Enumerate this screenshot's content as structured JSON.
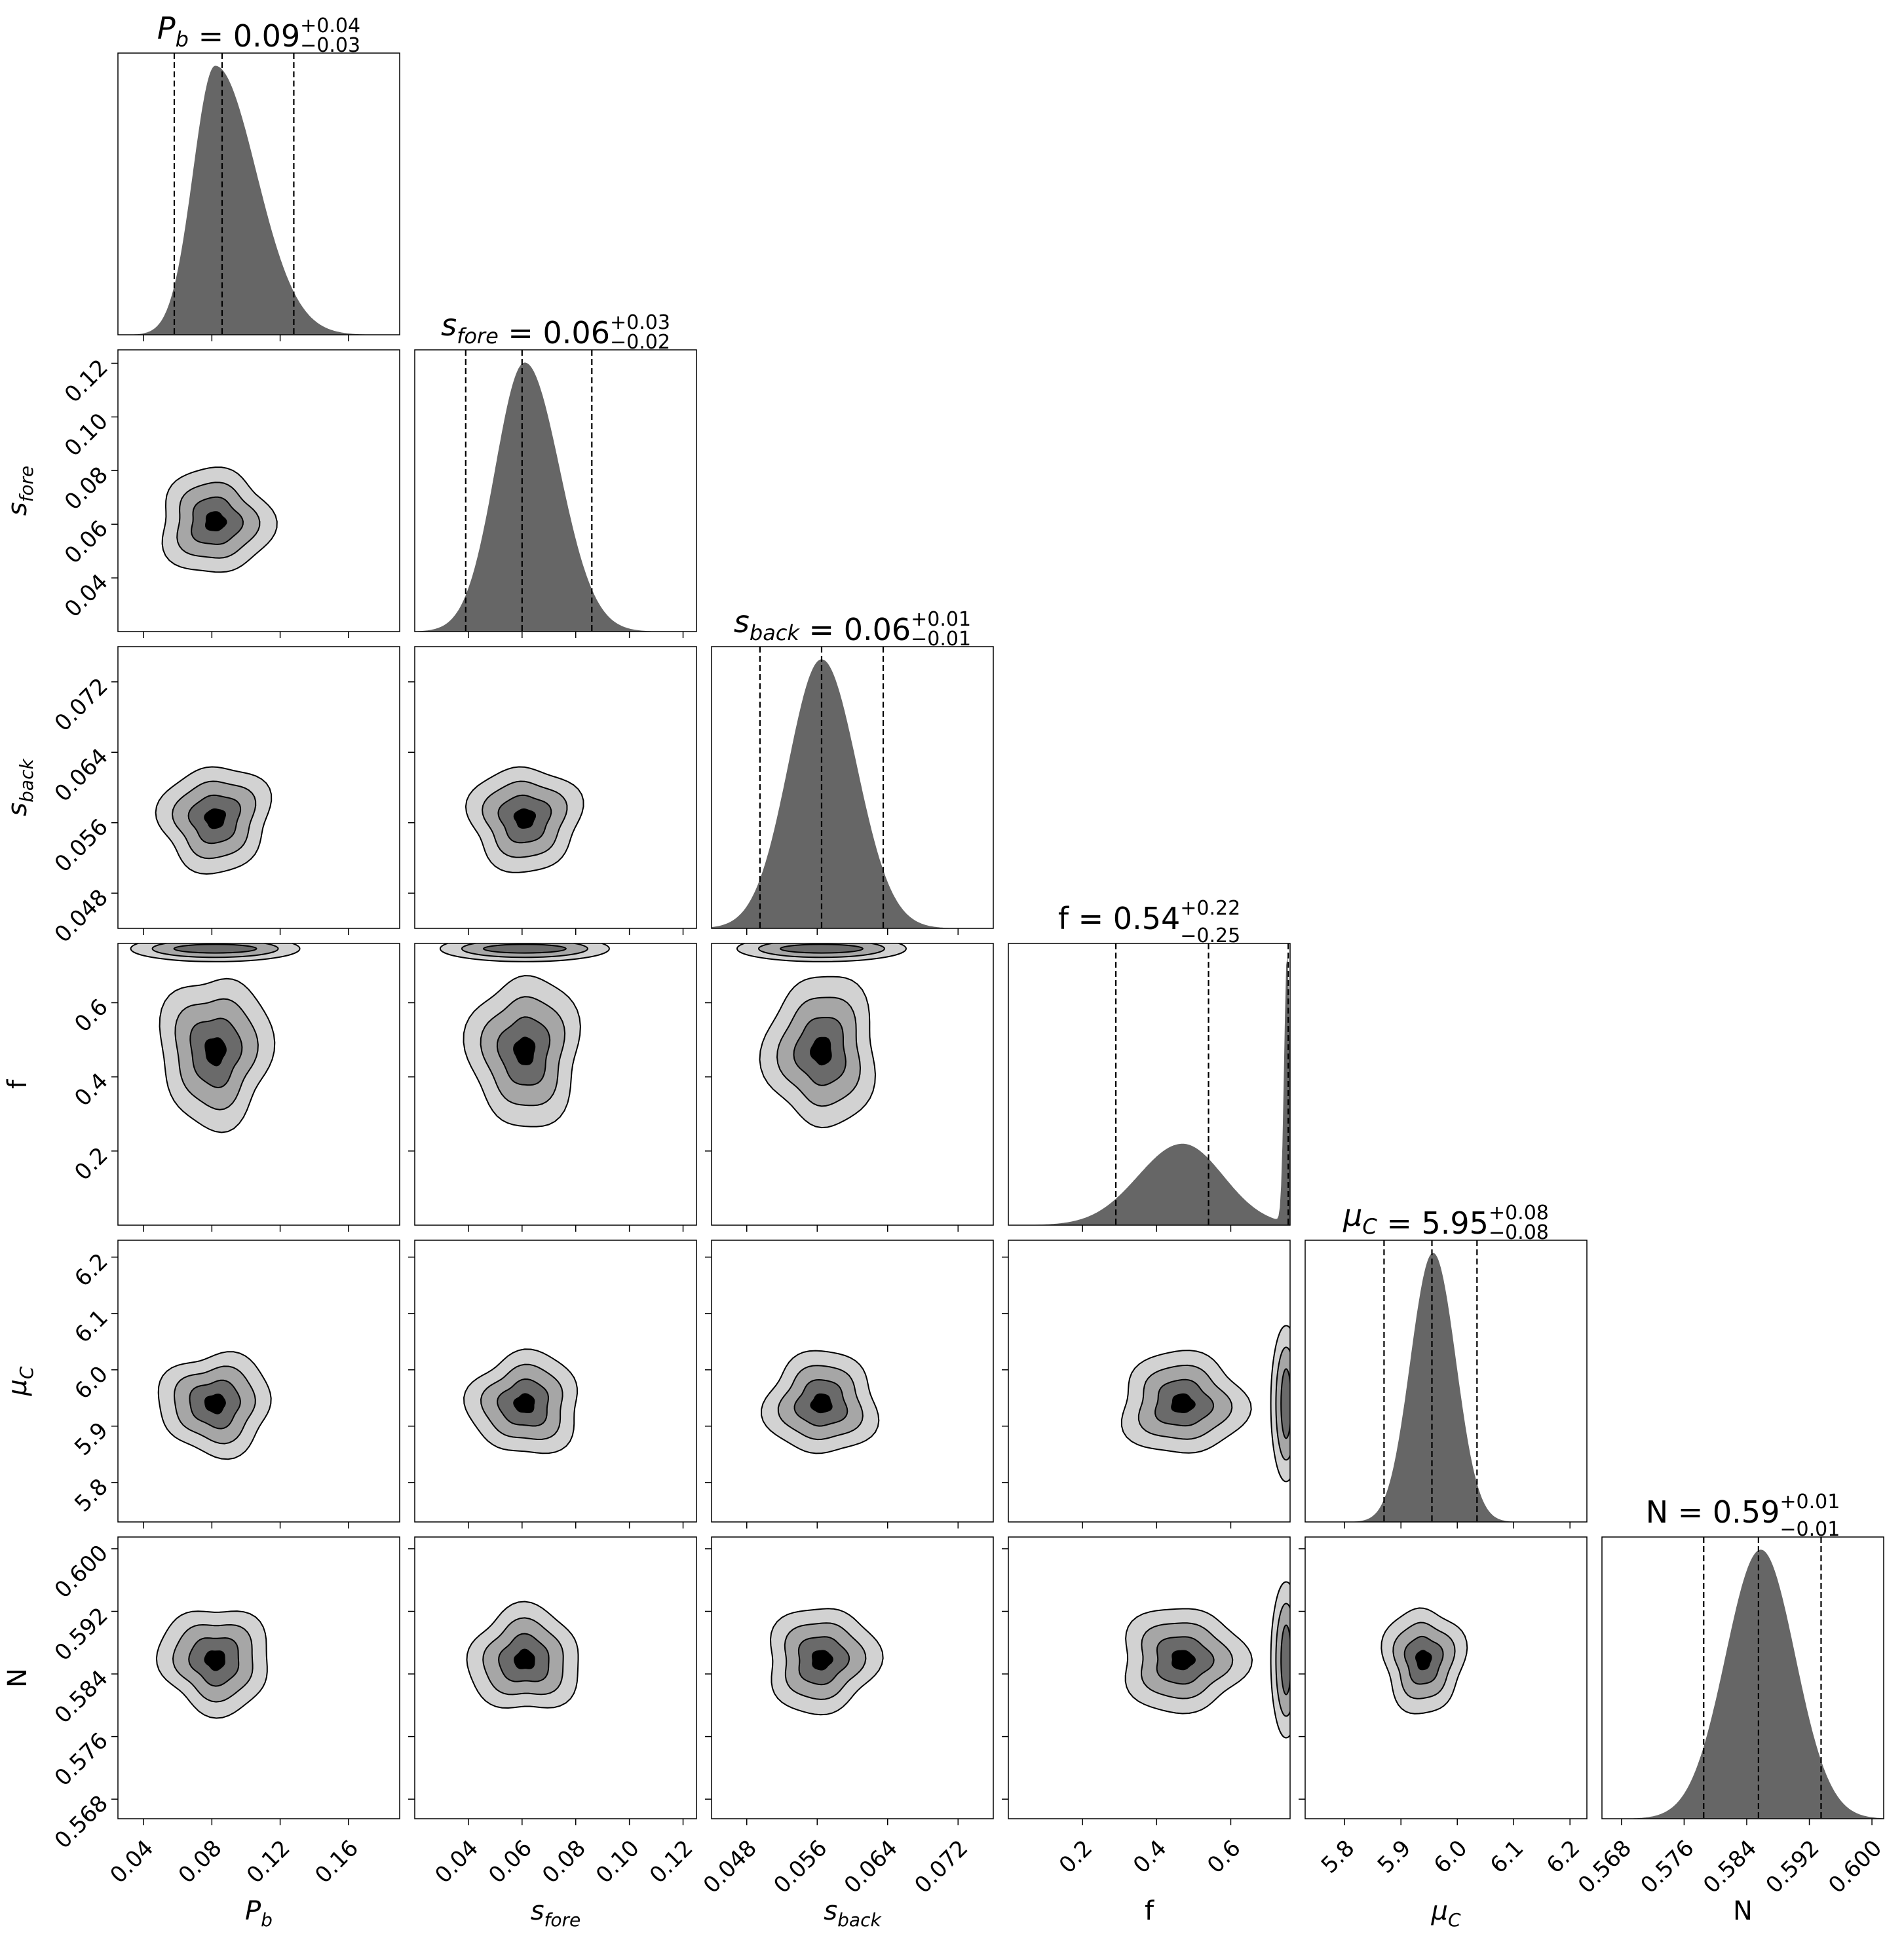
{
  "figure": {
    "type": "corner-plot",
    "description_of_panels": "lower-triangle 2D density contours, diagonal 1D marginal histograms with 16/50/84% quantile dashed lines"
  },
  "chart_data": {
    "type": "corner",
    "parameters": [
      {
        "key": "pb",
        "axis_label_tex": "P_b",
        "base": "P",
        "sub": "b",
        "title": {
          "base": "P",
          "sub": "b",
          "eq": " = 0.09",
          "plus": "+0.04",
          "minus": "−0.03"
        },
        "median": 0.09,
        "err_plus": 0.04,
        "err_minus": 0.03,
        "range": [
          0.025,
          0.19
        ],
        "ticks": [
          0.04,
          0.08,
          0.12,
          0.16
        ],
        "tick_labels": [
          "0.04",
          "0.08",
          "0.12",
          "0.16"
        ],
        "quantiles": [
          0.058,
          0.086,
          0.128
        ]
      },
      {
        "key": "sfore",
        "axis_label_tex": "s_fore",
        "base": "s",
        "sub": "fore",
        "title": {
          "base": "s",
          "sub": "fore",
          "eq": " = 0.06",
          "plus": "+0.03",
          "minus": "−0.02"
        },
        "median": 0.06,
        "err_plus": 0.03,
        "err_minus": 0.02,
        "range": [
          0.02,
          0.125
        ],
        "ticks": [
          0.04,
          0.06,
          0.08,
          0.1,
          0.12
        ],
        "tick_labels": [
          "0.04",
          "0.06",
          "0.08",
          "0.10",
          "0.12"
        ],
        "quantiles": [
          0.039,
          0.06,
          0.086
        ]
      },
      {
        "key": "sback",
        "axis_label_tex": "s_back",
        "base": "s",
        "sub": "back",
        "title": {
          "base": "s",
          "sub": "back",
          "eq": " = 0.06",
          "plus": "+0.01",
          "minus": "−0.01"
        },
        "median": 0.06,
        "err_plus": 0.01,
        "err_minus": 0.01,
        "range": [
          0.044,
          0.076
        ],
        "ticks": [
          0.048,
          0.056,
          0.064,
          0.072
        ],
        "tick_labels": [
          "0.048",
          "0.056",
          "0.064",
          "0.072"
        ],
        "quantiles": [
          0.0495,
          0.0565,
          0.0635
        ]
      },
      {
        "key": "f",
        "axis_label_tex": "f",
        "base": "f",
        "sub": "",
        "title": {
          "base": "f",
          "sub": "",
          "eq": " = 0.54",
          "plus": "+0.22",
          "minus": "−0.25"
        },
        "median": 0.54,
        "err_plus": 0.22,
        "err_minus": 0.25,
        "range": [
          0.0,
          0.76
        ],
        "ticks": [
          0.2,
          0.4,
          0.6
        ],
        "tick_labels": [
          "0.2",
          "0.4",
          "0.6"
        ],
        "quantiles": [
          0.29,
          0.54,
          0.755
        ]
      },
      {
        "key": "muc",
        "axis_label_tex": "μ_C",
        "base": "μ",
        "sub": "C",
        "title": {
          "base": "μ",
          "sub": "C",
          "eq": " = 5.95",
          "plus": "+0.08",
          "minus": "−0.08"
        },
        "median": 5.95,
        "err_plus": 0.08,
        "err_minus": 0.08,
        "range": [
          5.73,
          6.23
        ],
        "ticks": [
          5.8,
          5.9,
          6.0,
          6.1,
          6.2
        ],
        "tick_labels": [
          "5.8",
          "5.9",
          "6.0",
          "6.1",
          "6.2"
        ],
        "quantiles": [
          5.87,
          5.955,
          6.035
        ]
      },
      {
        "key": "n",
        "axis_label_tex": "N",
        "base": "N",
        "sub": "",
        "title": {
          "base": "N",
          "sub": "",
          "eq": " = 0.59",
          "plus": "+0.01",
          "minus": "−0.01"
        },
        "median": 0.59,
        "err_plus": 0.01,
        "err_minus": 0.01,
        "range": [
          0.5655,
          0.6015
        ],
        "ticks": [
          0.568,
          0.576,
          0.584,
          0.592,
          0.6
        ],
        "tick_labels": [
          "0.568",
          "0.576",
          "0.584",
          "0.592",
          "0.600"
        ],
        "quantiles": [
          0.5785,
          0.5855,
          0.5935
        ]
      }
    ],
    "marginals": {
      "pb": {
        "shape": "skew",
        "peak": 0.082,
        "sl": 0.013,
        "sr": 0.024
      },
      "sfore": {
        "shape": "skew",
        "peak": 0.061,
        "sl": 0.011,
        "sr": 0.013
      },
      "sback": {
        "shape": "skew",
        "peak": 0.0565,
        "sl": 0.0038,
        "sr": 0.004
      },
      "f": {
        "shape": "bimodal",
        "peak": 0.47,
        "sl": 0.12,
        "sr": 0.11,
        "peak2": 0.752,
        "s2": 0.008,
        "amp2": 3.3,
        "amp1": 1.0
      },
      "muc": {
        "shape": "double",
        "peak": 5.94,
        "peak2": 5.975,
        "sl": 0.035,
        "sr": 0.035
      },
      "n": {
        "shape": "skew",
        "peak": 0.5858,
        "sl": 0.0045,
        "sr": 0.0044
      }
    },
    "contour_levels": 4,
    "contour_fills": [
      "#d2d2d2",
      "#a6a6a6",
      "#6a6a6a",
      "#000000"
    ],
    "histogram_color": "#666666"
  }
}
